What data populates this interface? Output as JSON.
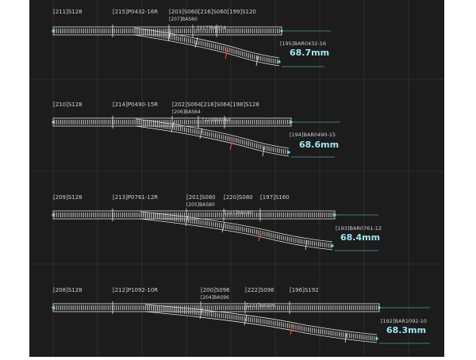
{
  "colors": {
    "background": "#1c1c1c",
    "grid": "#3a3a3a",
    "track_outline": "#e6e6e6",
    "tie": "#bdbdbd",
    "accent_cyan": "#6fd6e6",
    "joint_red": "#e0443c"
  },
  "sets": [
    {
      "straight_a": "[211]S128",
      "turnout": "[215]P0432-16R",
      "straight_b_line1": "[203]S060[216]S060[199]S120",
      "straight_b_line2": "[207]BAS60",
      "bas_inner": "[217]BAS54",
      "radius_label": "[195]BAR0432-16",
      "offset": "68.7mm"
    },
    {
      "straight_a": "[210]S128",
      "turnout": "[214]P0490-15R",
      "straight_b_line1": "[202]S064[218]S064[198]S128",
      "straight_b_line2": "[206]BAS64",
      "bas_inner": "[219]BAS64",
      "radius_label": "[194]BAR0490-15",
      "offset": "68.6mm"
    },
    {
      "straight_a": "[209]S128",
      "turnout": "[213]P0761-12R",
      "s1": "[201]S080",
      "s1_sub": "[205]BAS80",
      "s2": "[220]S080",
      "s3": "[197]S160",
      "bas_inner": "[221]BAS80",
      "radius_label": "[193]BAR0761-12",
      "offset": "68.4mm"
    },
    {
      "straight_a": "[208]S128",
      "turnout": "[212]P1092-10R",
      "s1": "[200]S096",
      "s1_sub": "[204]BAS96",
      "s2": "[222]S096",
      "s3": "[196]S192",
      "bas_inner": "[223]BAS96",
      "radius_label": "[192]BAR1092-10",
      "offset": "68.3mm"
    }
  ]
}
